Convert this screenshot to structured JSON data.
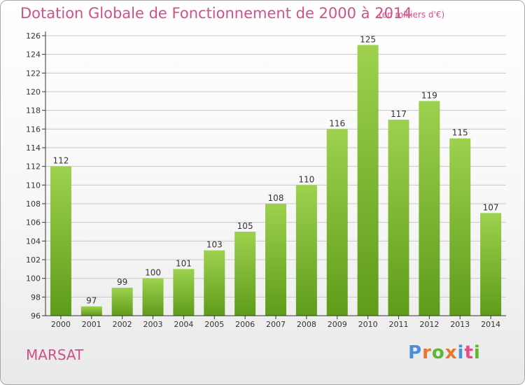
{
  "title": "Dotation Globale de Fonctionnement de 2000 à 2014",
  "unit_note": "(en milliers d'€)",
  "place_name": "MARSAT",
  "logo": {
    "text": "Proxiti",
    "colors": [
      "#4a90d9",
      "#e8762c",
      "#5bb82f",
      "#e8762c",
      "#4a90d9",
      "#e84a8a",
      "#5bb82f"
    ]
  },
  "colors": {
    "title": "#d0508a",
    "bar_top": "#9dd14e",
    "bar_bottom": "#5e9c1a",
    "axis": "#333333",
    "grid": "#c8c8c8"
  },
  "chart_data": {
    "type": "bar",
    "categories": [
      "2000",
      "2001",
      "2002",
      "2003",
      "2004",
      "2005",
      "2006",
      "2007",
      "2008",
      "2009",
      "2010",
      "2011",
      "2012",
      "2013",
      "2014"
    ],
    "values": [
      112,
      97,
      99,
      100,
      101,
      103,
      105,
      108,
      110,
      116,
      125,
      117,
      119,
      115,
      107
    ],
    "data_labels": [
      "112",
      "97",
      "99",
      "100",
      "101",
      "103",
      "105",
      "108",
      "110",
      "116",
      "125",
      "117",
      "119",
      "115",
      "107"
    ],
    "ylim": [
      96,
      126
    ],
    "yticks": [
      96,
      98,
      100,
      102,
      104,
      106,
      108,
      110,
      112,
      114,
      116,
      118,
      120,
      122,
      124,
      126
    ],
    "grid": true,
    "title": "Dotation Globale de Fonctionnement de 2000 à 2014",
    "xlabel": "",
    "ylabel": ""
  }
}
